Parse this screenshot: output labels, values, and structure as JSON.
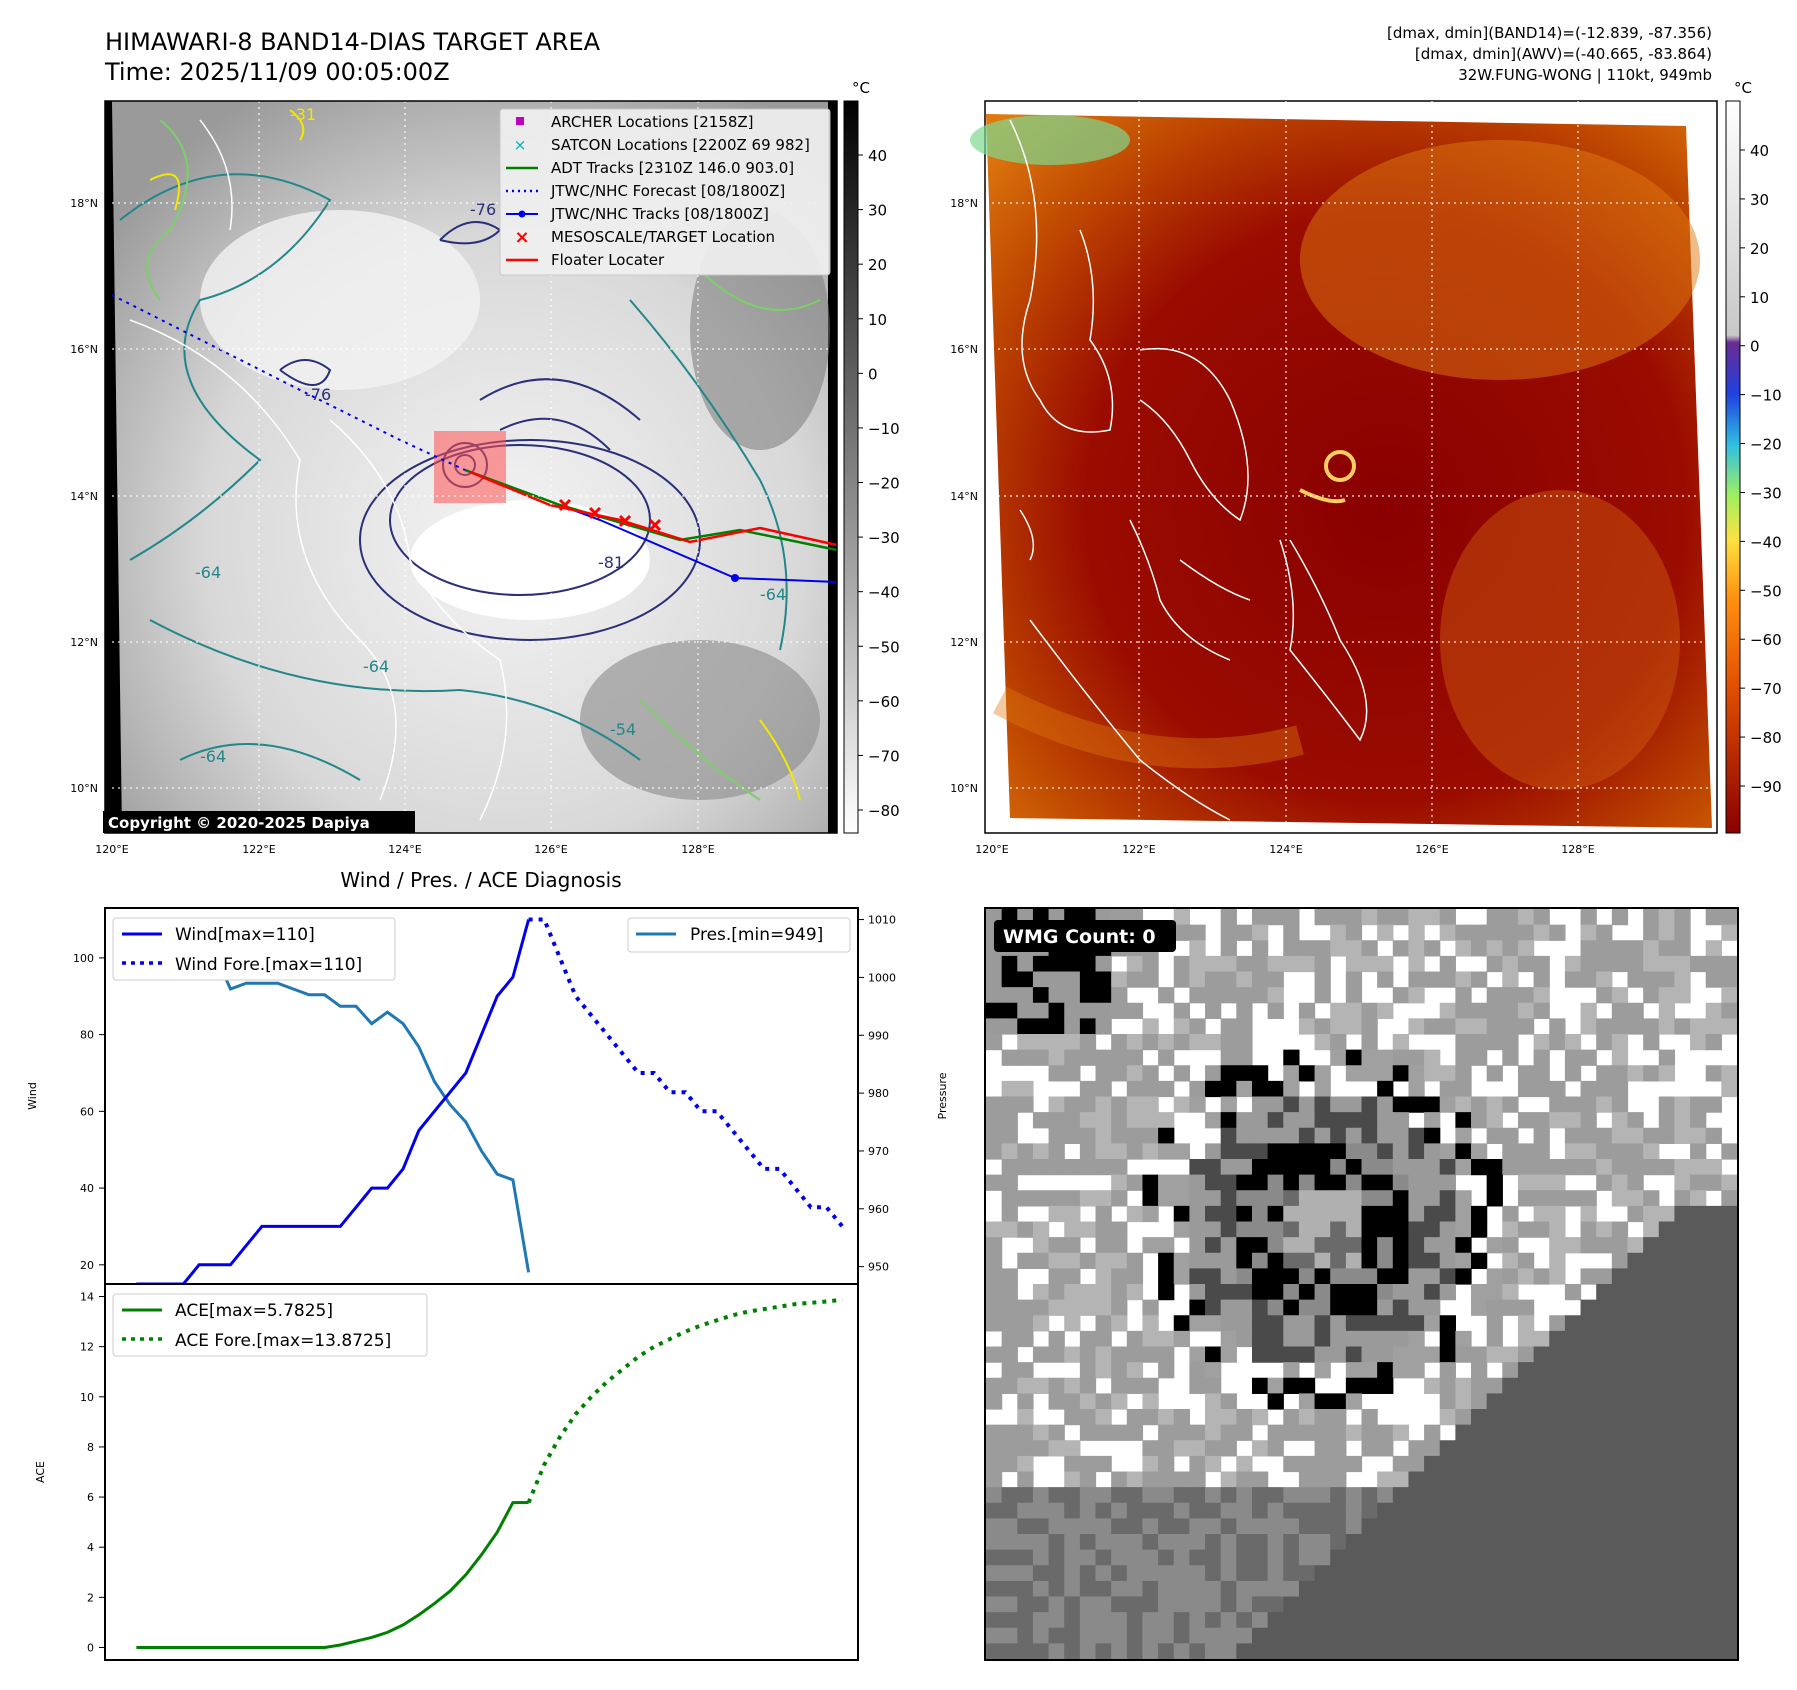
{
  "header": {
    "title_line1": "HIMAWARI-8 BAND14-DIAS TARGET AREA",
    "title_line2": "Time: 2025/11/09 00:05:00Z",
    "info_line1": "[dmax, dmin](BAND14)=(-12.839, -87.356)",
    "info_line2": "[dmax, dmin](AWV)=(-40.665, -83.864)",
    "info_line3": "32W.FUNG-WONG | 110kt, 949mb"
  },
  "map_axes": {
    "lat_labels": [
      "18°N",
      "16°N",
      "14°N",
      "12°N",
      "10°N"
    ],
    "lon_labels": [
      "120°E",
      "122°E",
      "124°E",
      "126°E",
      "128°E"
    ],
    "colorbar_unit": "°C"
  },
  "panel1": {
    "colorbar_ticks": [
      "40",
      "30",
      "20",
      "10",
      "0",
      "−10",
      "−20",
      "−30",
      "−40",
      "−50",
      "−60",
      "−70",
      "−80"
    ],
    "legend": [
      {
        "label": "ARCHER Locations [2158Z]",
        "color": "#c000c0",
        "marker": "square"
      },
      {
        "label": "SATCON Locations [2200Z 69 982]",
        "color": "#00b0b0",
        "marker": "x"
      },
      {
        "label": "ADT Tracks [2310Z 146.0 903.0]",
        "color": "#008000",
        "marker": "line"
      },
      {
        "label": "JTWC/NHC Forecast [08/1800Z]",
        "color": "#0000ff",
        "marker": "dotted"
      },
      {
        "label": "JTWC/NHC Tracks [08/1800Z]",
        "color": "#0000ff",
        "marker": "line-dot"
      },
      {
        "label": "MESOSCALE/TARGET Location",
        "color": "#ff0000",
        "marker": "x"
      },
      {
        "label": "Floater Locater",
        "color": "#ff0000",
        "marker": "line"
      }
    ],
    "contour_labels": [
      "-76",
      "-64",
      "-81",
      "-64",
      "-64",
      "-76",
      "-54",
      "-31",
      "-64"
    ],
    "copyright": "Copyright © 2020-2025 Dapiya"
  },
  "panel2": {
    "colorbar_ticks": [
      "40",
      "30",
      "20",
      "10",
      "0",
      "−10",
      "−20",
      "−30",
      "−40",
      "−50",
      "−60",
      "−70",
      "−80",
      "−90"
    ]
  },
  "panel3": {
    "title": "Wind / Pres. / ACE Diagnosis",
    "wind_ylabel": "Wind",
    "pres_ylabel": "Pressure",
    "ace_ylabel": "ACE",
    "wind_yticks": [
      "100",
      "80",
      "60",
      "40",
      "20"
    ],
    "pres_yticks": [
      "1010",
      "1000",
      "990",
      "980",
      "970",
      "960",
      "950"
    ],
    "ace_yticks": [
      "14",
      "12",
      "10",
      "8",
      "6",
      "4",
      "2",
      "0"
    ],
    "legend_wind": [
      "Wind[max=110]",
      "Wind Fore.[max=110]"
    ],
    "legend_pres": [
      "Pres.[min=949]"
    ],
    "legend_ace": [
      "ACE[max=5.7825]",
      "ACE Fore.[max=13.8725]"
    ]
  },
  "panel4": {
    "badge": "WMG Count: 0"
  },
  "chart_data": [
    {
      "type": "line",
      "title": "Wind / Pres. / ACE Diagnosis",
      "ylabel": "Wind",
      "ylim": [
        15,
        113
      ],
      "x": [
        0,
        1,
        2,
        3,
        4,
        5,
        6,
        7,
        8,
        9,
        10,
        11,
        12,
        13,
        14,
        15,
        16,
        17,
        18,
        19,
        20,
        21,
        22,
        23,
        24,
        25,
        26,
        27,
        28,
        29,
        30,
        31,
        32,
        33,
        34,
        35,
        36,
        37,
        38,
        39,
        40,
        41,
        42,
        43,
        44,
        45,
        46
      ],
      "xlim": [
        -2,
        46
      ],
      "series": [
        {
          "name": "Wind[max=110]",
          "style": "solid",
          "color": "#0000ee",
          "x": [
            0,
            1,
            2,
            3,
            4,
            5,
            6,
            7,
            8,
            9,
            10,
            11,
            12,
            13,
            14,
            15,
            16,
            17,
            18,
            19,
            20,
            21,
            22,
            23,
            24,
            25
          ],
          "values": [
            15,
            15,
            15,
            15,
            20,
            20,
            20,
            25,
            30,
            30,
            30,
            30,
            30,
            30,
            35,
            40,
            40,
            45,
            55,
            60,
            65,
            70,
            80,
            90,
            95,
            110
          ]
        },
        {
          "name": "Wind Fore.[max=110]",
          "style": "dotted",
          "color": "#0000ee",
          "x": [
            25,
            26,
            27,
            28,
            29,
            30,
            31,
            32,
            33,
            34,
            35,
            36,
            37,
            38,
            39,
            40,
            41,
            42,
            43,
            44,
            45
          ],
          "values": [
            110,
            110,
            100,
            90,
            85,
            80,
            75,
            70,
            70,
            65,
            65,
            60,
            60,
            55,
            50,
            45,
            45,
            40,
            35,
            35,
            30
          ]
        },
        {
          "name": "Pres.[min=949]",
          "axis": "right",
          "style": "solid",
          "color": "#1f77b4",
          "ylim": [
            947,
            1012
          ],
          "x": [
            0,
            1,
            2,
            3,
            4,
            5,
            6,
            7,
            8,
            9,
            10,
            11,
            12,
            13,
            14,
            15,
            16,
            17,
            18,
            19,
            20,
            21,
            22,
            23,
            24,
            25
          ],
          "values": [
            1010,
            1006,
            1006,
            1006,
            1006,
            1004,
            998,
            999,
            999,
            999,
            998,
            997,
            997,
            995,
            995,
            992,
            994,
            992,
            988,
            982,
            978,
            975,
            970,
            966,
            965,
            949
          ]
        }
      ]
    },
    {
      "type": "line",
      "ylabel": "ACE",
      "ylim": [
        -0.5,
        14.5
      ],
      "xlim": [
        -2,
        46
      ],
      "series": [
        {
          "name": "ACE[max=5.7825]",
          "style": "solid",
          "color": "#008000",
          "x": [
            0,
            1,
            2,
            3,
            4,
            5,
            6,
            7,
            8,
            9,
            10,
            11,
            12,
            13,
            14,
            15,
            16,
            17,
            18,
            19,
            20,
            21,
            22,
            23,
            24,
            25
          ],
          "values": [
            0,
            0,
            0,
            0,
            0,
            0,
            0,
            0,
            0,
            0,
            0,
            0,
            0,
            0.1,
            0.25,
            0.4,
            0.6,
            0.9,
            1.3,
            1.75,
            2.25,
            2.9,
            3.7,
            4.6,
            5.78,
            5.7825
          ]
        },
        {
          "name": "ACE Fore.[max=13.8725]",
          "style": "dotted",
          "color": "#008000",
          "x": [
            25,
            26,
            27,
            28,
            29,
            30,
            31,
            32,
            33,
            34,
            35,
            36,
            37,
            38,
            39,
            40,
            41,
            42,
            43,
            44,
            45
          ],
          "values": [
            5.78,
            7.3,
            8.4,
            9.3,
            10.0,
            10.6,
            11.1,
            11.6,
            12.0,
            12.3,
            12.6,
            12.85,
            13.05,
            13.25,
            13.4,
            13.5,
            13.6,
            13.7,
            13.75,
            13.8,
            13.8725
          ]
        }
      ]
    }
  ]
}
